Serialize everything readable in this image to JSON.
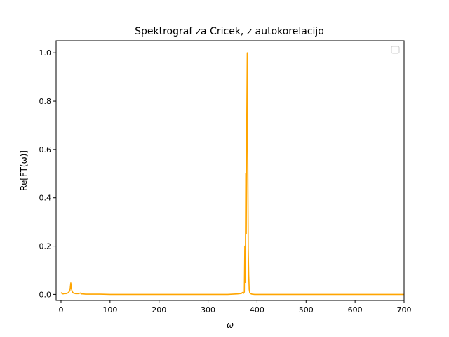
{
  "chart_data": {
    "type": "line",
    "title": "Spektrograf za Cricek, z autokorelacijo",
    "xlabel": "ω",
    "ylabel": "Re[FT(ω)]",
    "xlim": [
      -10,
      700
    ],
    "ylim": [
      -0.025,
      1.05
    ],
    "xticks": [
      "0",
      "100",
      "200",
      "300",
      "400",
      "500",
      "600",
      "700"
    ],
    "xtick_values": [
      0,
      100,
      200,
      300,
      400,
      500,
      600,
      700
    ],
    "yticks": [
      "0.0",
      "0.2",
      "0.4",
      "0.6",
      "0.8",
      "1.0"
    ],
    "ytick_values": [
      0.0,
      0.2,
      0.4,
      0.6,
      0.8,
      1.0
    ],
    "grid": false,
    "legend": {
      "placement": "top-right",
      "entries": []
    },
    "series": [
      {
        "color": "#ffa500",
        "x": [
          0,
          2,
          4,
          6,
          8,
          10,
          12,
          14,
          16,
          18,
          19,
          20,
          21,
          22,
          23,
          24,
          26,
          28,
          30,
          35,
          40,
          41,
          42,
          45,
          50,
          60,
          80,
          100,
          150,
          200,
          250,
          300,
          340,
          360,
          368,
          370,
          372,
          374,
          375,
          376,
          377,
          378,
          379,
          380,
          381,
          382,
          383,
          384,
          385,
          386,
          388,
          390,
          395,
          400,
          450,
          500,
          550,
          600,
          650,
          700
        ],
        "y": [
          0.008,
          0.004,
          0.002,
          0.003,
          0.004,
          0.003,
          0.005,
          0.006,
          0.01,
          0.015,
          0.03,
          0.048,
          0.025,
          0.018,
          0.012,
          0.008,
          0.005,
          0.004,
          0.003,
          0.003,
          0.006,
          0.003,
          0.002,
          0.002,
          0.001,
          0.001,
          0.001,
          0.0,
          0.0,
          0.0,
          0.0,
          0.0,
          0.0,
          0.002,
          0.004,
          0.008,
          0.004,
          0.01,
          0.2,
          0.05,
          0.5,
          0.25,
          0.72,
          1.0,
          0.6,
          0.19,
          0.08,
          0.02,
          0.008,
          0.004,
          0.002,
          0.001,
          0.0,
          0.0,
          0.0,
          0.0,
          0.0,
          0.0,
          0.0,
          0.0
        ]
      }
    ]
  }
}
